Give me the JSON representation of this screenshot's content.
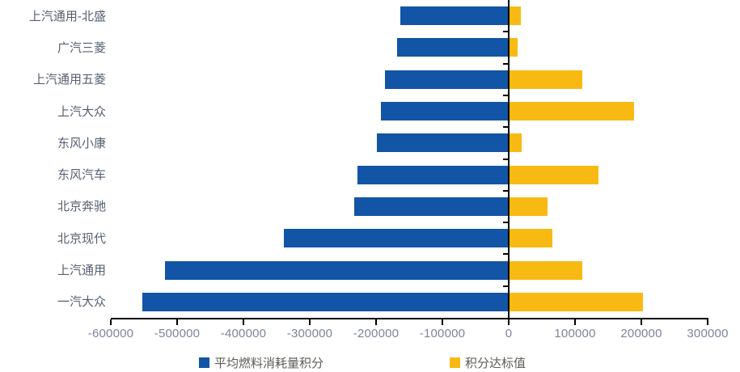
{
  "chart_data": {
    "type": "bar",
    "orientation": "horizontal",
    "title": "",
    "xlabel": "",
    "ylabel": "",
    "categories": [
      "上汽通用-北盛",
      "广汽三菱",
      "上汽通用五菱",
      "上汽大众",
      "东风小康",
      "东风汽车",
      "北京奔驰",
      "北京现代",
      "上汽通用",
      "一汽大众"
    ],
    "series": [
      {
        "name": "平均燃料消耗量积分",
        "color": "#1254A5",
        "values": [
          -164000,
          -168000,
          -187000,
          -193000,
          -199000,
          -228000,
          -233000,
          -339000,
          -518000,
          -552000
        ]
      },
      {
        "name": "积分达标值",
        "color": "#F8BA12",
        "values": [
          18000,
          13000,
          111000,
          189000,
          19000,
          135000,
          58000,
          66000,
          111000,
          203000
        ]
      }
    ],
    "xlim": [
      -600000,
      300000
    ],
    "x_ticks": [
      -600000,
      -500000,
      -400000,
      -300000,
      -200000,
      -100000,
      0,
      100000,
      200000,
      300000
    ],
    "x_tick_labels": [
      "-600000",
      "-500000",
      "-400000",
      "-300000",
      "-200000",
      "-100000",
      "0",
      "100000",
      "200000",
      "300000"
    ],
    "grid": false,
    "legend_position": "bottom"
  },
  "colors": {
    "axis": "#000000",
    "tick_label": "#7b8698",
    "category_label": "#55606e",
    "legend_label": "#5c5c57",
    "background": "#ffffff"
  }
}
